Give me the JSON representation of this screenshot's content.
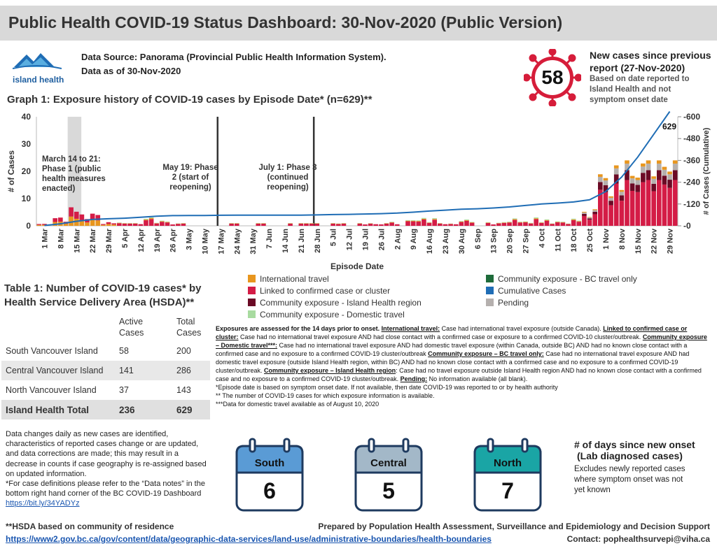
{
  "header": {
    "title": "Public Health COVID-19 Status Dashboard: 30-Nov-2020 (Public Version)",
    "logo_text": "island health",
    "data_source_line1": "Data Source: Panorama (Provincial Public Health Information System).",
    "data_source_line2": "Data as of 30-Nov-2020"
  },
  "new_cases": {
    "count": "58",
    "title_line1": "New cases since previous",
    "title_line2": "report (27-Nov-2020)",
    "sub_line1": "Based on date reported to",
    "sub_line2": "Island Health and not",
    "sub_line3": "symptom onset date"
  },
  "graph": {
    "title": "Graph 1: Exposure history of COVID-19 cases by Episode Date* (n=629)**",
    "final_label": "629",
    "annotations": [
      {
        "line1": "March 14 to 21:",
        "line2": "Phase 1 (public",
        "line3": "health measures",
        "line4": "enacted)"
      },
      {
        "line1": "May 19: Phase",
        "line2": "2 (start of",
        "line3": "reopening)"
      },
      {
        "line1": "July 1: Phase 3",
        "line2": "(continued",
        "line3": "reopening)"
      }
    ]
  },
  "chart_data": {
    "type": "bar",
    "xlabel": "Episode Date",
    "ylabel": "# of Cases",
    "ylabel_right": "# of Cases (Cumulative)",
    "ylim": [
      0,
      40
    ],
    "ylim_right": [
      0,
      600
    ],
    "yticks": [
      "0",
      "10",
      "20",
      "30",
      "40"
    ],
    "yticks_right": [
      "0",
      "120",
      "240",
      "360",
      "480",
      "600"
    ],
    "xticks": [
      "1 Mar",
      "8 Mar",
      "15 Mar",
      "22 Mar",
      "29 Mar",
      "5 Apr",
      "12 Apr",
      "19 Apr",
      "26 Apr",
      "3 May",
      "10 May",
      "17 May",
      "24 May",
      "31 May",
      "7 Jun",
      "14 Jun",
      "21 Jun",
      "28 Jun",
      "5 Jul",
      "12 Jul",
      "19 Jul",
      "26 Jul",
      "2 Aug",
      "9 Aug",
      "16 Aug",
      "23 Aug",
      "30 Aug",
      "6 Sep",
      "13 Sep",
      "20 Sep",
      "27 Sep",
      "4 Oct",
      "11 Oct",
      "18 Oct",
      "25 Oct",
      "1 Nov",
      "8 Nov",
      "15 Nov",
      "22 Nov",
      "29 Nov"
    ],
    "weekly_case_approx": [
      2,
      9,
      14,
      10,
      4,
      3,
      5,
      6,
      3,
      1,
      0,
      1,
      1,
      0,
      0,
      0,
      0,
      1,
      2,
      1,
      2,
      2,
      3,
      5,
      6,
      5,
      5,
      3,
      4,
      6,
      8,
      8,
      5,
      6,
      12,
      45,
      80,
      110,
      125,
      70
    ],
    "cumulative_weekly": [
      2,
      11,
      25,
      35,
      39,
      42,
      47,
      53,
      56,
      57,
      57,
      58,
      59,
      59,
      59,
      59,
      59,
      60,
      62,
      63,
      65,
      67,
      70,
      75,
      81,
      86,
      91,
      94,
      98,
      104,
      112,
      120,
      125,
      131,
      143,
      188,
      268,
      378,
      503,
      629
    ],
    "series": [
      {
        "name": "International travel",
        "color": "#e8961e"
      },
      {
        "name": "Linked to confirmed case or cluster",
        "color": "#d41c46"
      },
      {
        "name": "Community exposure - Island Health region",
        "color": "#6b0a25"
      },
      {
        "name": "Community exposure - Domestic travel",
        "color": "#a8dba0"
      },
      {
        "name": "Community exposure - BC travel only",
        "color": "#1e6b3a"
      },
      {
        "name": "Cumulative Cases",
        "color": "#1f6db5"
      },
      {
        "name": "Pending",
        "color": "#b5b0ae"
      }
    ]
  },
  "table": {
    "title_line1": "Table 1: Number of COVID-19 cases* by",
    "title_line2": "Health Service Delivery Area (HSDA)**",
    "col_active": "Active Cases",
    "col_total": "Total Cases",
    "rows": [
      {
        "name": "South Vancouver Island",
        "active": "58",
        "total": "200"
      },
      {
        "name": "Central Vancouver Island",
        "active": "141",
        "total": "286"
      },
      {
        "name": "North Vancouver Island",
        "active": "37",
        "total": "143"
      }
    ],
    "total_row": {
      "name": "Island Health Total",
      "active": "236",
      "total": "629"
    }
  },
  "notes": {
    "p1a": "Exposures are assessed for the 14 days prior to onset. ",
    "it_label": "International travel:",
    "it_text": " Case had international travel exposure (outside Canada). ",
    "lc_label": "Linked to confirmed case or cluster:",
    "lc_text": " Case had no international travel exposure AND had close contact with a confirmed case or exposure to a confirmed COVID-10 cluster/outbreak. ",
    "dt_label": "Community exposure – Domestic travel***:",
    "dt_text": " Case had no international travel exposure AND had domestic travel exposure (within Canada, outside BC) AND had no known close contact with a confirmed case and no exposure to a confirmed COVID-19 cluster/outbreak ",
    "bc_label": "Community exposure – BC travel only:",
    "bc_text": " Case had no international travel exposure AND had domestic travel exposure (outside Island Health region, within BC) AND had no known close contact with a confirmed case and no exposure to a confirmed COVID-19 cluster/outbreak. ",
    "ih_label": "Community exposure – Island Health region",
    "ih_text": ": Case had no travel exposure outside Island Health region AND had no known close contact with a confirmed case and no exposure to a confirmed COVID-19 cluster/outbreak. ",
    "pd_label": "Pending:",
    "pd_text": " No information available (all blank).",
    "fn1": "*Episode date is based on symptom onset date. If not available, then date COVID-19 was reported to or by health authority",
    "fn2": "** The number of COVID-19 cases for which exposure information is available.",
    "fn3": "***Data for domestic travel available as of August 10, 2020"
  },
  "data_changes": {
    "text": "Data changes daily as new cases are identified, characteristics of reported cases change or are updated, and data corrections are made; this may result in a decrease in counts if case geography is re-assigned based on updated information.",
    "def_text": "*For case definitions please refer to the “Data notes” in the bottom right hand corner of the BC COVID-19 Dashboard ",
    "def_link": "https://bit.ly/34YADYz"
  },
  "days_since": {
    "title_line1": "# of days since new onset",
    "title_line2": "(Lab diagnosed cases)",
    "note_line1": "Excludes newly reported cases",
    "note_line2": "where symptom onset was not",
    "note_line3": "yet known",
    "regions": [
      {
        "name": "South",
        "days": "6",
        "color": "#5a9bd5"
      },
      {
        "name": "Central",
        "days": "5",
        "color": "#a3b8c8"
      },
      {
        "name": "North",
        "days": "7",
        "color": "#1aa5a5"
      }
    ]
  },
  "footer": {
    "hsda_note": "**HSDA based on community of residence",
    "boundary_link": "https://www2.gov.bc.ca/gov/content/data/geographic-data-services/land-use/administrative-boundaries/health-boundaries",
    "prepared_by": "Prepared by Population Health Assessment, Surveillance and Epidemiology and Decision Support",
    "contact": "Contact: pophealthsurvepi@viha.ca"
  }
}
